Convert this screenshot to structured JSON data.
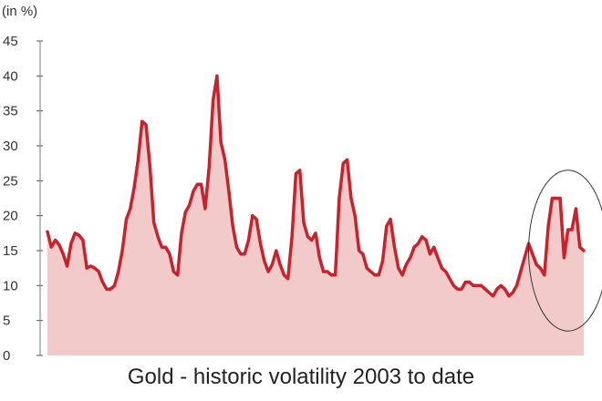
{
  "chart_data": {
    "type": "area",
    "title": "Gold - historic volatility 2003 to date",
    "ylabel": "(in %)",
    "xlabel": "",
    "ylim": [
      0,
      45
    ],
    "yticks": [
      0,
      5,
      10,
      15,
      20,
      25,
      30,
      35,
      40,
      45
    ],
    "grid": false,
    "colors": {
      "line": "#c8232c",
      "fill": "#f2caca",
      "annotation": "#333333"
    },
    "series": [
      {
        "values": [
          17.7,
          15.5,
          16.5,
          15.8,
          14.5,
          12.8,
          16.0,
          17.5,
          17.2,
          16.5,
          12.5,
          12.8,
          12.5,
          12.0,
          10.5,
          9.5,
          9.5,
          10.0,
          12.0,
          15.0,
          19.5,
          21.0,
          24.0,
          28.0,
          33.5,
          33.0,
          27.0,
          19.0,
          17.0,
          15.5,
          15.5,
          14.5,
          12.0,
          11.5,
          17.5,
          20.5,
          21.5,
          23.5,
          24.5,
          24.5,
          21.0,
          27.0,
          36.5,
          40.0,
          30.5,
          28.0,
          23.5,
          18.5,
          15.5,
          14.5,
          14.5,
          16.5,
          20.0,
          19.5,
          16.0,
          13.5,
          12.0,
          13.0,
          15.0,
          13.0,
          11.5,
          11.0,
          17.0,
          26.0,
          26.5,
          19.0,
          17.0,
          16.5,
          17.5,
          14.0,
          12.0,
          12.0,
          11.5,
          11.5,
          22.5,
          27.5,
          28.0,
          22.5,
          20.0,
          15.0,
          14.5,
          12.5,
          12.0,
          11.5,
          11.5,
          13.5,
          18.5,
          19.5,
          15.5,
          12.5,
          11.5,
          13.0,
          14.0,
          15.5,
          16.0,
          17.0,
          16.5,
          14.5,
          15.5,
          14.0,
          12.5,
          12.0,
          11.0,
          10.0,
          9.5,
          9.5,
          10.5,
          10.5,
          10.0,
          10.0,
          10.0,
          9.5,
          9.0,
          8.5,
          9.5,
          10.0,
          9.5,
          8.5,
          9.0,
          10.0,
          12.0,
          14.0,
          16.0,
          14.5,
          13.0,
          12.5,
          11.5,
          18.5,
          22.5,
          22.5,
          22.5,
          14.0,
          18.0,
          18.0,
          21.0,
          15.5,
          15.0
        ]
      }
    ],
    "annotations": [
      {
        "type": "ellipse",
        "x_center": 132,
        "y_center": 15,
        "x_radius": 10,
        "y_radius": 11.5
      }
    ]
  }
}
